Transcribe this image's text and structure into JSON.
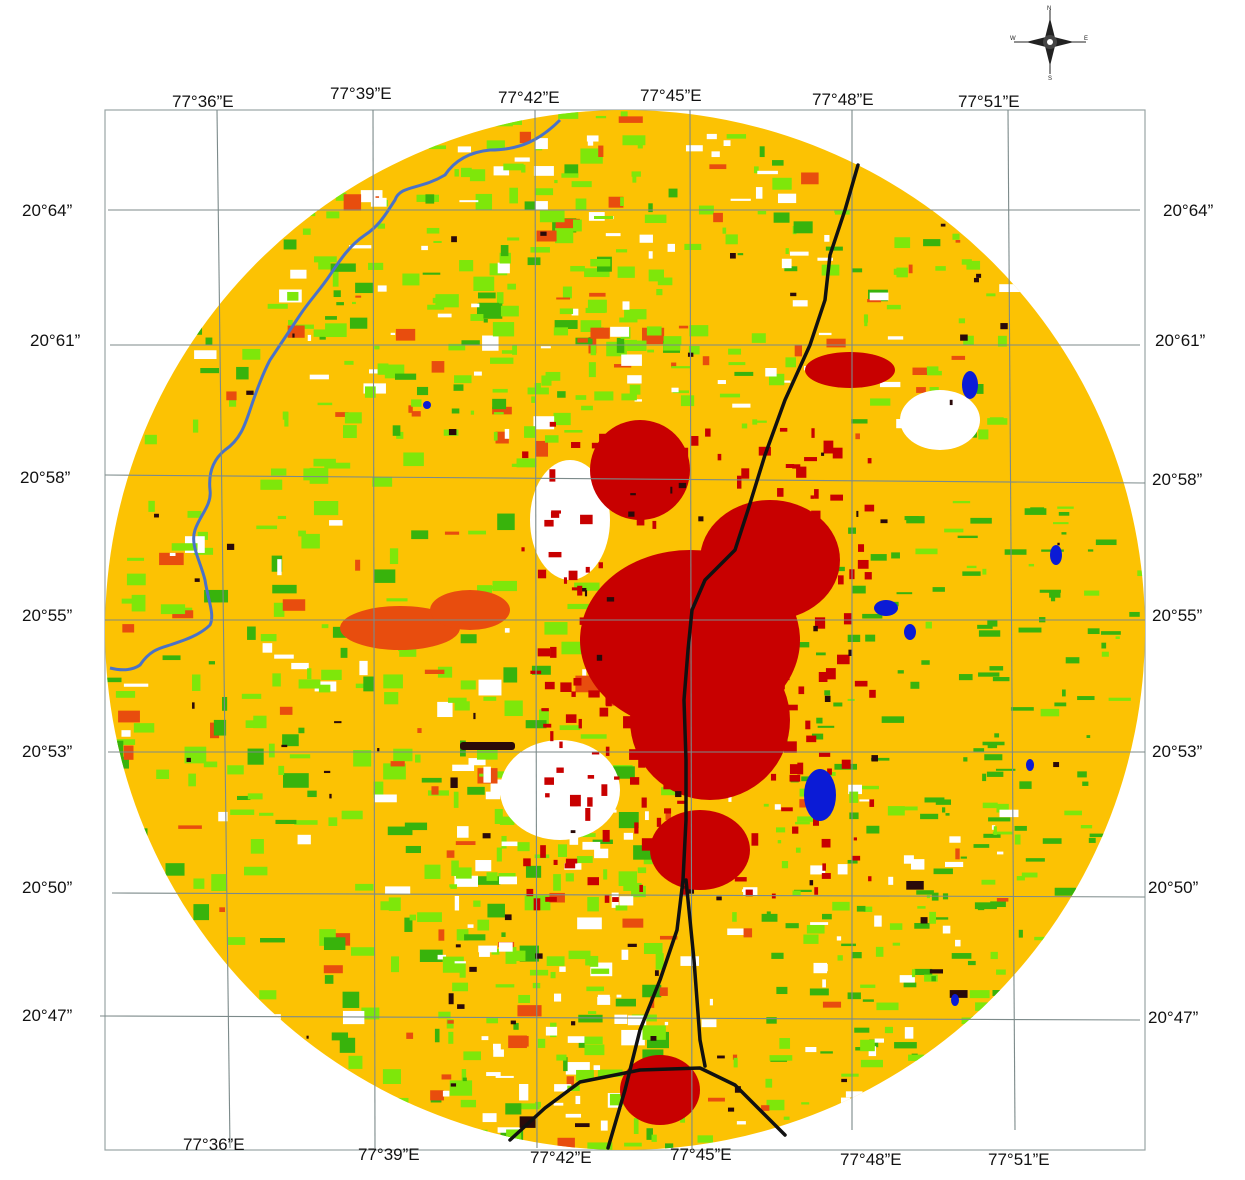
{
  "map": {
    "top_lon_labels": [
      "77°36”E",
      "77°39”E",
      "77°42”E",
      "77°45”E",
      "77°48”E",
      "77°51”E"
    ],
    "bottom_lon_labels": [
      "77°36”E",
      "77°39”E",
      "77°42”E",
      "77°45”E",
      "77°48”E",
      "77°51”E"
    ],
    "left_lat_labels": [
      "20°64”",
      "20°61”",
      "20°58”",
      "20°55”",
      "20°53”",
      "20°50”",
      "20°47”"
    ],
    "right_lat_labels": [
      "20°64”",
      "20°61”",
      "20°58”",
      "20°55”",
      "20°53”",
      "20°50”",
      "20°47”"
    ],
    "compass_letters": {
      "n": "N",
      "s": "S",
      "e": "E",
      "w": "W"
    },
    "colors": {
      "agriculture": "#fcc203",
      "vegetation_light": "#7ee70a",
      "vegetation_dark": "#38b30c",
      "fallow": "#e84d0e",
      "built_up": "#c80000",
      "water": "#0b1bd6",
      "barren_open": "#ffffff",
      "rocky": "#2a0a0a",
      "river": "#4a72c8",
      "road": "#111111",
      "grid": "#7c8a8a"
    }
  }
}
